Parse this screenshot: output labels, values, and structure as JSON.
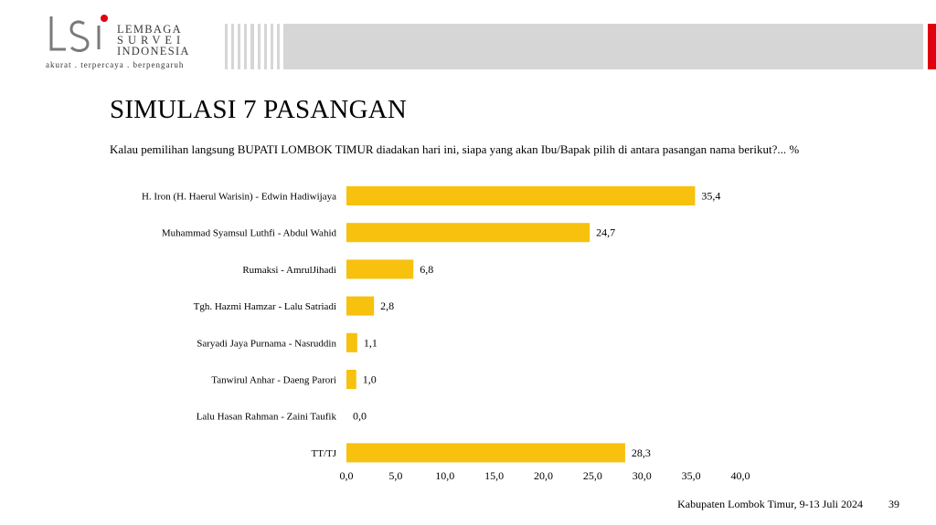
{
  "header": {
    "logo_initials": "LSI",
    "logo_line1": "LEMBAGA",
    "logo_line2": "SURVEI",
    "logo_line3": "INDONESIA",
    "logo_tagline": "akurat . terpercaya . berpengaruh",
    "band_color": "#d6d6d6",
    "accent_color": "#e10010"
  },
  "slide": {
    "title": "SIMULASI 7 PASANGAN",
    "question": "Kalau pemilihan langsung BUPATI LOMBOK TIMUR diadakan hari ini, siapa yang akan Ibu/Bapak pilih di antara pasangan nama berikut?... %",
    "footer": "Kabupaten Lombok Timur, 9-13 Juli 2024",
    "page_number": "39"
  },
  "chart_data": {
    "type": "bar",
    "orientation": "horizontal",
    "bar_color": "#f7c10d",
    "categories": [
      "H. Iron (H. Haerul Warisin) - Edwin Hadiwijaya",
      "Muhammad Syamsul Luthfi - Abdul Wahid",
      "Rumaksi - AmrulJihadi",
      "Tgh. Hazmi Hamzar - Lalu Satriadi",
      "Saryadi Jaya Purnama - Nasruddin",
      "Tanwirul Anhar - Daeng Parori",
      "Lalu Hasan Rahman - Zaini Taufik",
      "TT/TJ"
    ],
    "values": [
      35.4,
      24.7,
      6.8,
      2.8,
      1.1,
      1.0,
      0.0,
      28.3
    ],
    "value_labels": [
      "35,4",
      "24,7",
      "6,8",
      "2,8",
      "1,1",
      "1,0",
      "0,0",
      "28,3"
    ],
    "xlim": [
      0,
      40
    ],
    "x_ticks": [
      "0,0",
      "5,0",
      "10,0",
      "15,0",
      "20,0",
      "25,0",
      "30,0",
      "35,0",
      "40,0"
    ],
    "x_tick_values": [
      0,
      5,
      10,
      15,
      20,
      25,
      30,
      35,
      40
    ],
    "grid": false
  }
}
